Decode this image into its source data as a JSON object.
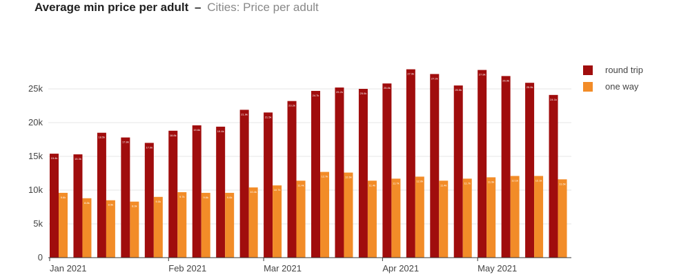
{
  "header": {
    "title": "Average min price per adult",
    "separator": "–",
    "subtitle": "Cities: Price per adult"
  },
  "chart_data": {
    "type": "bar",
    "title": "Average min price per adult",
    "subtitle": "Cities: Price per adult",
    "xlabel": "",
    "ylabel": "",
    "ylim": [
      0,
      30000
    ],
    "y_ticks": [
      0,
      5000,
      10000,
      15000,
      20000,
      25000
    ],
    "y_tick_labels": [
      "0",
      "5k",
      "10k",
      "15k",
      "20k",
      "25k"
    ],
    "x_tick_labels": [
      {
        "label": "Jan 2021",
        "at_index": 0
      },
      {
        "label": "Feb 2021",
        "at_index": 5
      },
      {
        "label": "Mar 2021",
        "at_index": 9
      },
      {
        "label": "Apr 2021",
        "at_index": 14
      },
      {
        "label": "May 2021",
        "at_index": 18
      }
    ],
    "grid": true,
    "legend_position": "top-right",
    "series": [
      {
        "name": "round trip",
        "color": "#a00d0d",
        "values": [
          15400,
          15300,
          18500,
          17800,
          17000,
          18800,
          19600,
          19400,
          21900,
          21500,
          23200,
          24700,
          25200,
          25000,
          25800,
          27900,
          27200,
          25500,
          27800,
          26900,
          25900,
          24100
        ]
      },
      {
        "name": "one way",
        "color": "#f28c28",
        "values": [
          9600,
          8800,
          8500,
          8300,
          9000,
          9700,
          9600,
          9600,
          10400,
          10700,
          11400,
          12700,
          12600,
          11400,
          11700,
          12000,
          11400,
          11700,
          11900,
          12100,
          12100,
          11600
        ]
      }
    ]
  }
}
